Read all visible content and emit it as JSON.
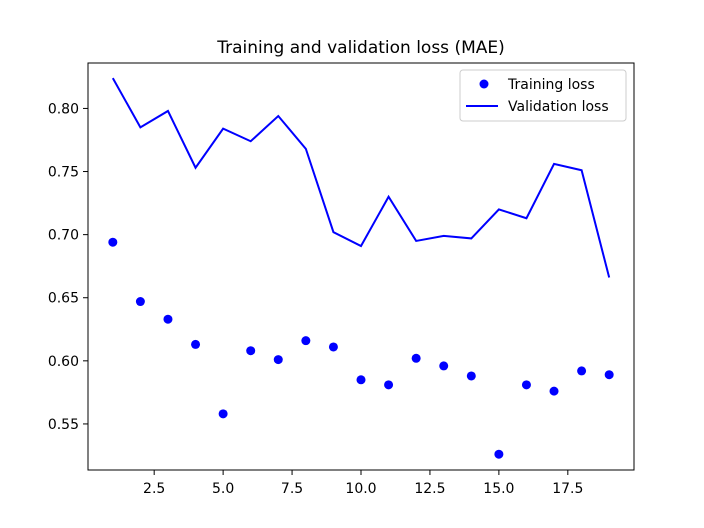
{
  "chart_data": {
    "type": "line",
    "title": "Training and validation loss (MAE)",
    "xlabel": "",
    "ylabel": "",
    "xlim": [
      0.1,
      19.9
    ],
    "ylim": [
      0.5135,
      0.836
    ],
    "grid": false,
    "legend_position": "top-right",
    "x_ticks": [
      2.5,
      5.0,
      7.5,
      10.0,
      12.5,
      15.0,
      17.5
    ],
    "x_tick_labels": [
      "2.5",
      "5.0",
      "7.5",
      "10.0",
      "12.5",
      "15.0",
      "17.5"
    ],
    "y_ticks": [
      0.55,
      0.6,
      0.65,
      0.7,
      0.75,
      0.8
    ],
    "y_tick_labels": [
      "0.55",
      "0.60",
      "0.65",
      "0.70",
      "0.75",
      "0.80"
    ],
    "x": [
      1,
      2,
      3,
      4,
      5,
      6,
      7,
      8,
      9,
      10,
      11,
      12,
      13,
      14,
      15,
      16,
      17,
      18,
      19
    ],
    "series": [
      {
        "name": "Training loss",
        "style": "scatter",
        "color": "#0000ff",
        "values": [
          0.694,
          0.647,
          0.633,
          0.613,
          0.558,
          0.608,
          0.601,
          0.616,
          0.611,
          0.585,
          0.581,
          0.602,
          0.596,
          0.588,
          0.526,
          0.581,
          0.576,
          0.592,
          0.589
        ]
      },
      {
        "name": "Validation loss",
        "style": "line",
        "color": "#0000ff",
        "values": [
          0.824,
          0.785,
          0.798,
          0.753,
          0.784,
          0.774,
          0.794,
          0.768,
          0.702,
          0.691,
          0.73,
          0.695,
          0.699,
          0.697,
          0.72,
          0.713,
          0.756,
          0.751,
          0.666
        ]
      }
    ]
  }
}
